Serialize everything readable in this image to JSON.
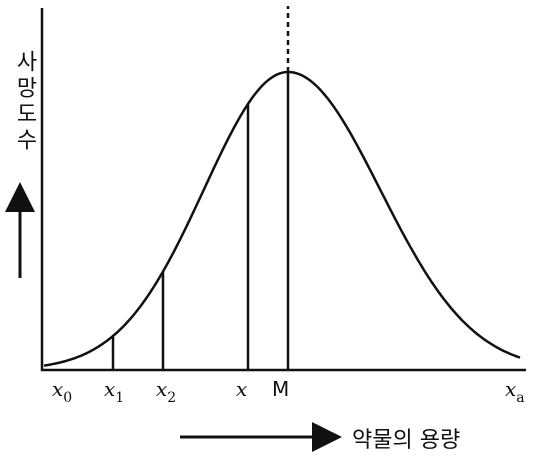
{
  "y_axis_label": "사망도수",
  "x_axis_label": "약물의 용량",
  "x_labels": [
    {
      "base": "x",
      "sub": "0"
    },
    {
      "base": "x",
      "sub": "1"
    },
    {
      "base": "x",
      "sub": "2"
    },
    {
      "base": "x"
    },
    {
      "base": "M"
    },
    {
      "base": "x",
      "sub": "a"
    }
  ]
}
